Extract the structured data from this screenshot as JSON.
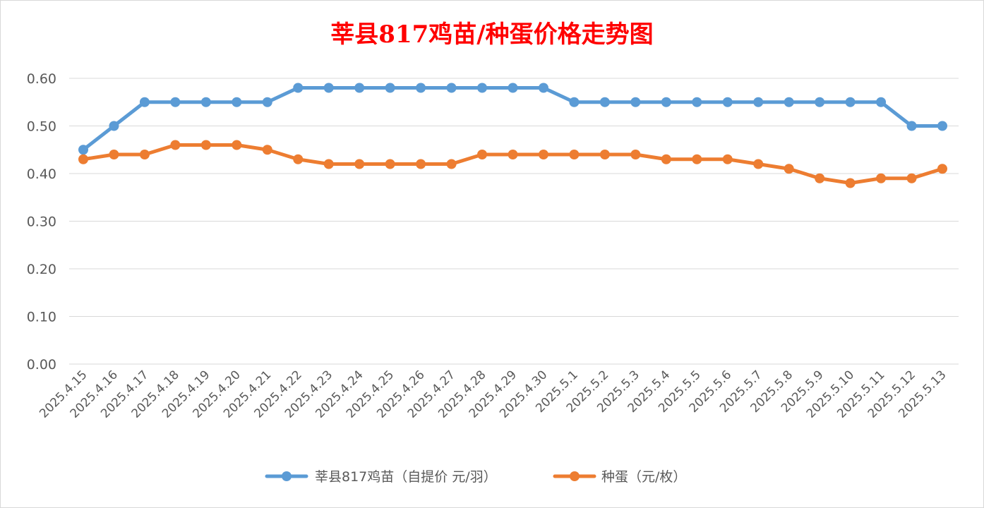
{
  "chart_data": {
    "type": "line",
    "title": "莘县817鸡苗/种蛋价格走势图",
    "x": [
      "2025.4.15",
      "2025.4.16",
      "2025.4.17",
      "2025.4.18",
      "2025.4.19",
      "2025.4.20",
      "2025.4.21",
      "2025.4.22",
      "2025.4.23",
      "2025.4.24",
      "2025.4.25",
      "2025.4.26",
      "2025.4.27",
      "2025.4.28",
      "2025.4.29",
      "2025.4.30",
      "2025.5.1",
      "2025.5.2",
      "2025.5.3",
      "2025.5.4",
      "2025.5.5",
      "2025.5.6",
      "2025.5.7",
      "2025.5.8",
      "2025.5.9",
      "2025.5.10",
      "2025.5.11",
      "2025.5.12",
      "2025.5.13"
    ],
    "series": [
      {
        "name": "莘县817鸡苗（自提价 元/羽）",
        "color": "#5b9bd5",
        "values": [
          0.45,
          0.5,
          0.55,
          0.55,
          0.55,
          0.55,
          0.55,
          0.58,
          0.58,
          0.58,
          0.58,
          0.58,
          0.58,
          0.58,
          0.58,
          0.58,
          0.55,
          0.55,
          0.55,
          0.55,
          0.55,
          0.55,
          0.55,
          0.55,
          0.55,
          0.55,
          0.55,
          0.5,
          0.5
        ]
      },
      {
        "name": "种蛋（元/枚）",
        "color": "#ed7d31",
        "values": [
          0.43,
          0.44,
          0.44,
          0.46,
          0.46,
          0.46,
          0.45,
          0.43,
          0.42,
          0.42,
          0.42,
          0.42,
          0.42,
          0.44,
          0.44,
          0.44,
          0.44,
          0.44,
          0.44,
          0.43,
          0.43,
          0.43,
          0.42,
          0.41,
          0.39,
          0.38,
          0.39,
          0.39,
          0.41
        ]
      }
    ],
    "yticks": [
      "0.00",
      "0.10",
      "0.20",
      "0.30",
      "0.40",
      "0.50",
      "0.60"
    ],
    "ylim": [
      0,
      0.6
    ],
    "grid": true,
    "legend": "bottom",
    "title_color": "#ff0000"
  }
}
